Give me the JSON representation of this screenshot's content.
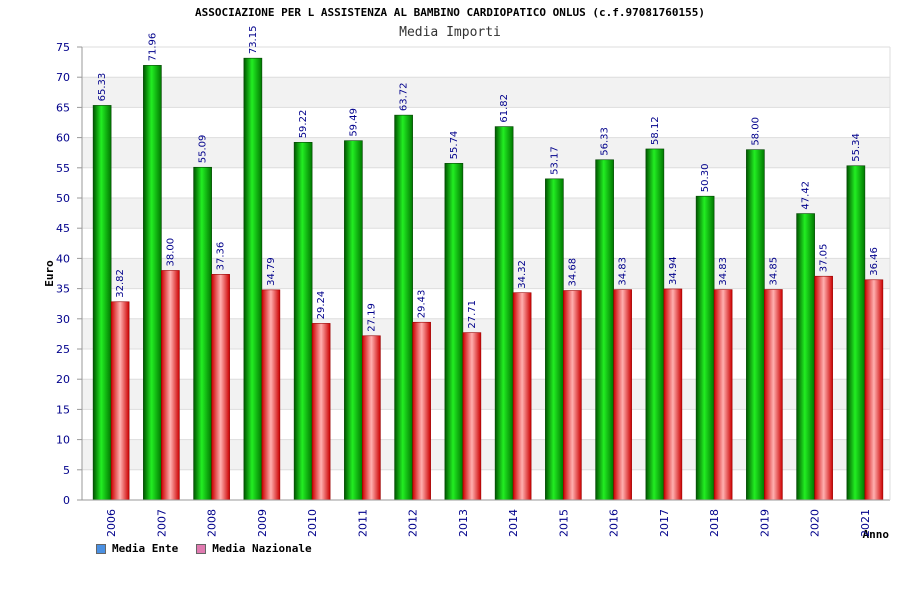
{
  "header": {
    "title": "ASSOCIAZIONE PER L ASSISTENZA AL BAMBINO CARDIOPATICO ONLUS (c.f.97081760155)",
    "subtitle": "Media Importi"
  },
  "legend": [
    {
      "label": "Media Ente",
      "color": "#4a90e2"
    },
    {
      "label": "Media Nazionale",
      "color": "#e07ab0"
    }
  ],
  "chart_data": {
    "type": "bar",
    "title": "Media Importi",
    "xlabel": "Anno",
    "ylabel": "Euro",
    "ylim": [
      0,
      75
    ],
    "yticks": [
      0,
      5,
      10,
      15,
      20,
      25,
      30,
      35,
      40,
      45,
      50,
      55,
      60,
      65,
      70,
      75
    ],
    "categories": [
      "2006",
      "2007",
      "2008",
      "2009",
      "2010",
      "2011",
      "2012",
      "2013",
      "2014",
      "2015",
      "2016",
      "2017",
      "2018",
      "2019",
      "2020",
      "2021"
    ],
    "series": [
      {
        "name": "Media Ente",
        "bar_color": "#00aa00",
        "values": [
          65.33,
          71.96,
          55.09,
          73.15,
          59.22,
          59.49,
          63.72,
          55.74,
          61.82,
          53.17,
          56.33,
          58.12,
          50.3,
          58.0,
          47.42,
          55.34
        ],
        "labels": [
          "65.33",
          "71.96",
          "55.09",
          "73.15",
          "59.22",
          "59.49",
          "63.72",
          "55.74",
          "61.82",
          "53.17",
          "56.33",
          "58.12",
          "50.30",
          "58.00",
          "47.42",
          "55.34"
        ]
      },
      {
        "name": "Media Nazionale",
        "bar_color": "#dd0000",
        "values": [
          32.82,
          38.0,
          37.36,
          34.79,
          29.24,
          27.19,
          29.43,
          27.71,
          34.32,
          34.68,
          34.83,
          34.94,
          34.83,
          34.85,
          37.05,
          36.46
        ],
        "labels": [
          "32.82",
          "38.00",
          "37.36",
          "34.79",
          "29.24",
          "27.19",
          "29.43",
          "27.71",
          "34.32",
          "34.68",
          "34.83",
          "34.94",
          "34.83",
          "34.85",
          "37.05",
          "36.46"
        ]
      }
    ],
    "grid": true,
    "legend_position": "bottom-left"
  }
}
